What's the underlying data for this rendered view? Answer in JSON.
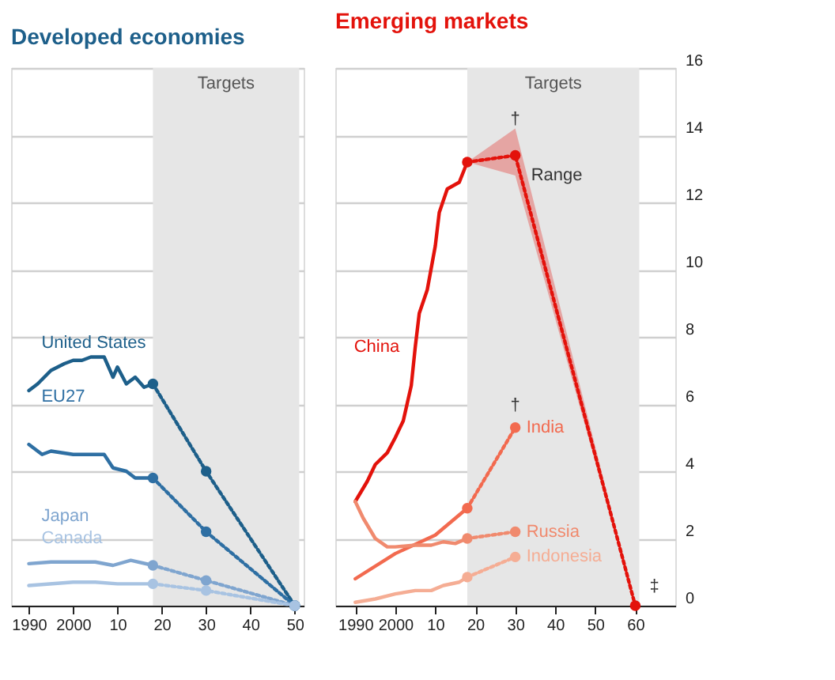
{
  "chart_data": [
    {
      "type": "line",
      "title": "Developed economies",
      "xlim": [
        1986,
        2052
      ],
      "ylim": [
        0,
        16
      ],
      "xticks": [
        1990,
        2000,
        {
          "value": 2010,
          "label": "10"
        },
        {
          "value": 2020,
          "label": "20"
        },
        {
          "value": 2030,
          "label": "30"
        },
        {
          "value": 2040,
          "label": "40"
        },
        {
          "value": 2050,
          "label": "50"
        }
      ],
      "yticks": [
        0,
        2,
        4,
        6,
        8,
        10,
        12,
        14,
        16
      ],
      "tick_labels": "x",
      "grid": "y",
      "bands": [
        {
          "axis": "x",
          "from": 2018,
          "to": 2051,
          "label": "Targets",
          "color": "#e6e6e6"
        }
      ],
      "series": [
        {
          "name": "United States",
          "color": "#1d5f8a",
          "line_style": "solid",
          "x": [
            1990,
            1992,
            1995,
            1998,
            2000,
            2002,
            2004,
            2007,
            2009,
            2010,
            2012,
            2014,
            2016,
            2018
          ],
          "values": [
            6.4,
            6.6,
            7.0,
            7.2,
            7.3,
            7.3,
            7.4,
            7.4,
            6.8,
            7.1,
            6.6,
            6.8,
            6.5,
            6.6
          ]
        },
        {
          "color": "#1d5f8a",
          "line_style": "dotted",
          "marker": "circle",
          "x": [
            2018,
            2030,
            2050
          ],
          "values": [
            6.6,
            4.0,
            0
          ]
        },
        {
          "name": "EU27",
          "color": "#2e6fa3",
          "line_style": "solid",
          "x": [
            1990,
            1993,
            1995,
            2000,
            2003,
            2007,
            2009,
            2012,
            2014,
            2018
          ],
          "values": [
            4.8,
            4.5,
            4.6,
            4.5,
            4.5,
            4.5,
            4.1,
            4.0,
            3.8,
            3.8
          ]
        },
        {
          "color": "#2e6fa3",
          "line_style": "dotted",
          "marker": "circle",
          "x": [
            2018,
            2030,
            2050
          ],
          "values": [
            3.8,
            2.2,
            0
          ]
        },
        {
          "name": "Japan",
          "color": "#7fa5cf",
          "line_style": "solid",
          "x": [
            1990,
            1995,
            2000,
            2005,
            2009,
            2013,
            2018
          ],
          "values": [
            1.25,
            1.3,
            1.3,
            1.3,
            1.2,
            1.35,
            1.2
          ]
        },
        {
          "color": "#7fa5cf",
          "line_style": "dotted",
          "marker": "circle",
          "x": [
            2018,
            2030,
            2050
          ],
          "values": [
            1.2,
            0.75,
            0
          ]
        },
        {
          "name": "Canada",
          "color": "#a8c3e2",
          "line_style": "solid",
          "x": [
            1990,
            2000,
            2005,
            2010,
            2018
          ],
          "values": [
            0.6,
            0.7,
            0.7,
            0.65,
            0.65
          ]
        },
        {
          "color": "#a8c3e2",
          "line_style": "dotted",
          "marker": "circle",
          "x": [
            2018,
            2030,
            2050
          ],
          "values": [
            0.65,
            0.45,
            0
          ]
        }
      ]
    },
    {
      "type": "line",
      "title": "Emerging markets",
      "xlim": [
        1985,
        2070
      ],
      "ylim": [
        0,
        16
      ],
      "xticks": [
        1990,
        2000,
        {
          "value": 2010,
          "label": "10"
        },
        {
          "value": 2020,
          "label": "20"
        },
        {
          "value": 2030,
          "label": "30"
        },
        {
          "value": 2040,
          "label": "40"
        },
        {
          "value": 2050,
          "label": "50"
        },
        {
          "value": 2060,
          "label": "60"
        }
      ],
      "yticks": [
        0,
        2,
        4,
        6,
        8,
        10,
        12,
        14,
        16
      ],
      "grid": "y",
      "bands": [
        {
          "axis": "x",
          "from": 2018,
          "to": 2061,
          "label": "Targets",
          "color": "#e6e6e6"
        }
      ],
      "annotations": [
        "Range",
        "†",
        "†",
        "‡"
      ],
      "series": [
        {
          "name": "China",
          "color": "#e3120b",
          "line_style": "solid",
          "x": [
            1990,
            1993,
            1995,
            1998,
            2000,
            2002,
            2004,
            2005,
            2006,
            2008,
            2010,
            2011,
            2013,
            2016,
            2018
          ],
          "values": [
            3.1,
            3.7,
            4.2,
            4.55,
            5.0,
            5.5,
            6.55,
            7.7,
            8.7,
            9.4,
            10.7,
            11.7,
            12.4,
            12.6,
            13.2
          ]
        },
        {
          "color": "#e3120b",
          "line_style": "dotted",
          "marker": "circle",
          "x": [
            2018,
            2030,
            2060
          ],
          "values": [
            13.2,
            13.4,
            0
          ],
          "lower": [
            13.2,
            12.8,
            0
          ],
          "upper": [
            13.2,
            14.2,
            0
          ]
        },
        {
          "color": "#f26a4f",
          "line_style": "solid",
          "x": [
            1990,
            2000,
            2010,
            2015,
            2018
          ],
          "values": [
            0.8,
            1.55,
            2.1,
            2.6,
            2.9
          ]
        },
        {
          "name": "India",
          "color": "#f26a4f",
          "line_style": "dotted",
          "marker": "circle",
          "x": [
            2018,
            2030
          ],
          "values": [
            2.9,
            5.3
          ]
        },
        {
          "color": "#f08a6e",
          "line_style": "solid",
          "x": [
            1990,
            1992,
            1995,
            1998,
            2000,
            2005,
            2009,
            2012,
            2015,
            2018
          ],
          "values": [
            3.1,
            2.6,
            2.0,
            1.75,
            1.75,
            1.8,
            1.8,
            1.9,
            1.85,
            2.0
          ]
        },
        {
          "name": "Russia",
          "color": "#f08a6e",
          "line_style": "dotted",
          "marker": "circle",
          "x": [
            2018,
            2030
          ],
          "values": [
            2.0,
            2.2
          ]
        },
        {
          "color": "#f5ad94",
          "line_style": "solid",
          "x": [
            1990,
            1995,
            2000,
            2005,
            2009,
            2012,
            2016,
            2018
          ],
          "values": [
            0.1,
            0.2,
            0.35,
            0.45,
            0.45,
            0.6,
            0.7,
            0.85
          ]
        },
        {
          "name": "Indonesia",
          "color": "#f5ad94",
          "line_style": "dotted",
          "marker": "circle",
          "x": [
            2018,
            2030
          ],
          "values": [
            0.85,
            1.45
          ]
        }
      ]
    }
  ]
}
